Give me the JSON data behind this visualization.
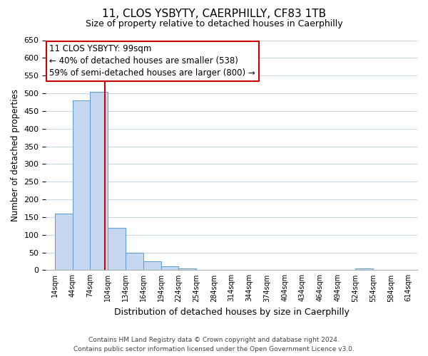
{
  "title": "11, CLOS YSBYTY, CAERPHILLY, CF83 1TB",
  "subtitle": "Size of property relative to detached houses in Caerphilly",
  "xlabel": "Distribution of detached houses by size in Caerphilly",
  "ylabel": "Number of detached properties",
  "bar_values": [
    160,
    480,
    505,
    120,
    50,
    25,
    10,
    5,
    0,
    0,
    0,
    0,
    0,
    0,
    0,
    0,
    0,
    5,
    0,
    0
  ],
  "bin_edges": [
    14,
    44,
    74,
    104,
    134,
    164,
    194,
    224,
    254,
    284,
    314,
    344,
    374,
    404,
    434,
    464,
    494,
    524,
    554,
    584,
    614
  ],
  "tick_labels": [
    "14sqm",
    "44sqm",
    "74sqm",
    "104sqm",
    "134sqm",
    "164sqm",
    "194sqm",
    "224sqm",
    "254sqm",
    "284sqm",
    "314sqm",
    "344sqm",
    "374sqm",
    "404sqm",
    "434sqm",
    "464sqm",
    "494sqm",
    "524sqm",
    "554sqm",
    "584sqm",
    "614sqm"
  ],
  "ylim": [
    0,
    650
  ],
  "yticks": [
    0,
    50,
    100,
    150,
    200,
    250,
    300,
    350,
    400,
    450,
    500,
    550,
    600,
    650
  ],
  "bar_color": "#c5d8f0",
  "bar_edge_color": "#5b9bd5",
  "property_line_x": 99,
  "property_line_color": "#cc0000",
  "annotation_title": "11 CLOS YSBYTY: 99sqm",
  "annotation_line1": "← 40% of detached houses are smaller (538)",
  "annotation_line2": "59% of semi-detached houses are larger (800) →",
  "annotation_box_color": "#ffffff",
  "annotation_box_edge": "#cc0000",
  "footer1": "Contains HM Land Registry data © Crown copyright and database right 2024.",
  "footer2": "Contains public sector information licensed under the Open Government Licence v3.0.",
  "background_color": "#ffffff",
  "grid_color": "#c8d8e8"
}
